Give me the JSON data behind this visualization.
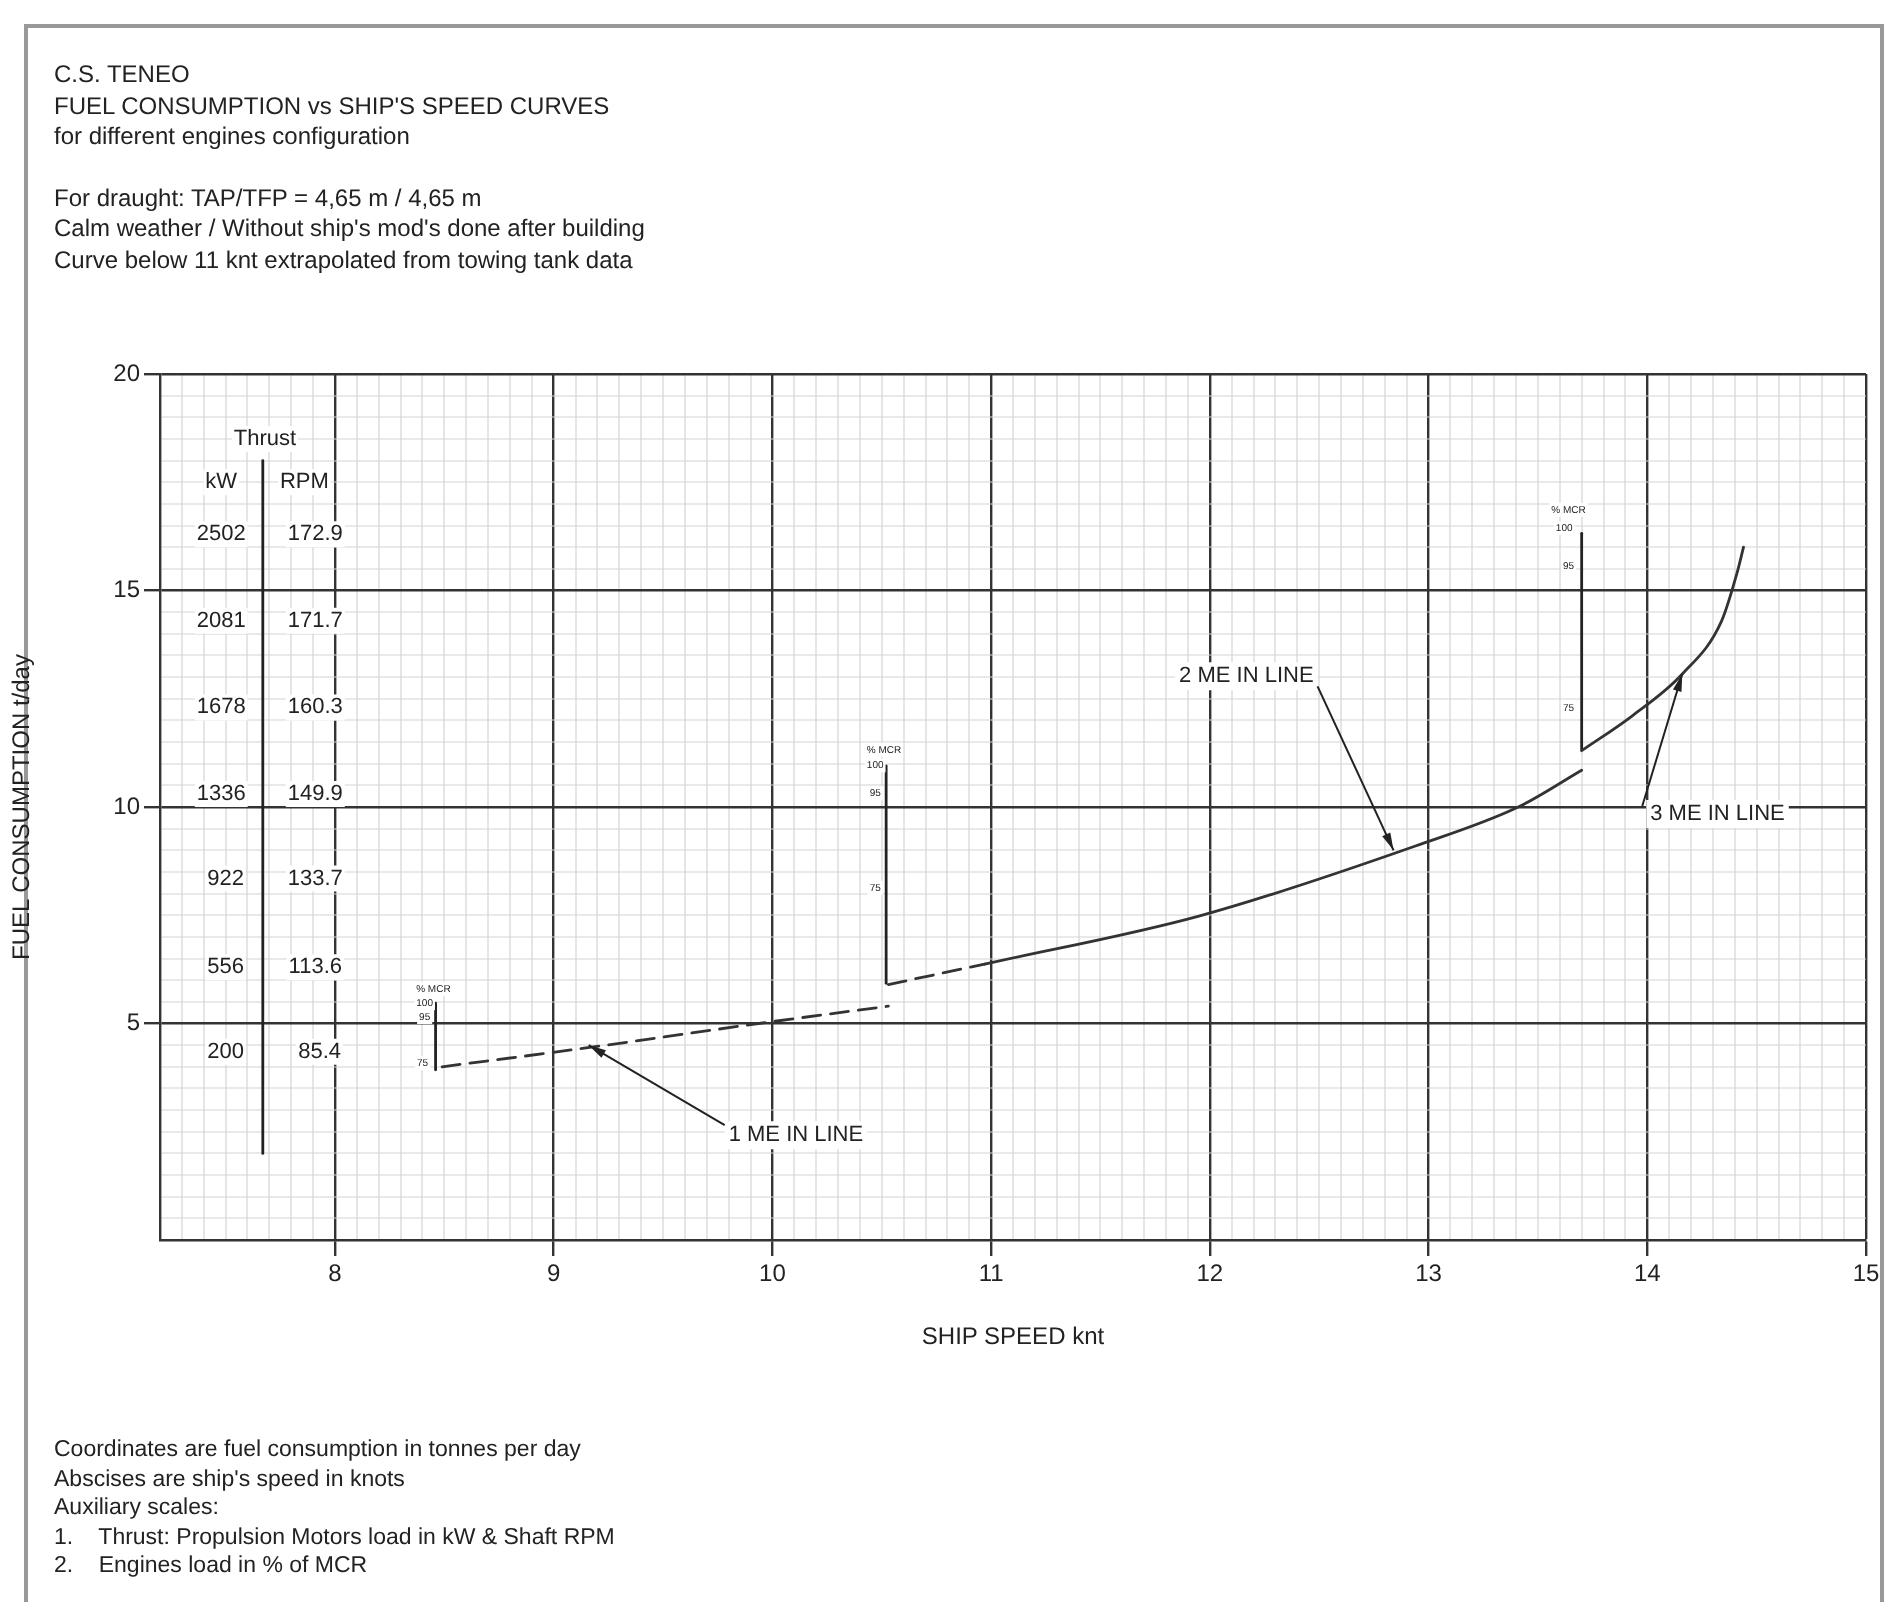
{
  "chart_data": {
    "type": "line",
    "title": "C.S. TENEO",
    "subtitle": "FUEL CONSUMPTION vs SHIP'S SPEED CURVES\nfor different engines configuration",
    "xlabel": "SHIP SPEED knt",
    "ylabel": "FUEL CONSUMPTION t/day",
    "xlim": [
      7.2,
      15
    ],
    "ylim": [
      0,
      20
    ],
    "xticks": [
      {
        "value": 7.3,
        "label": null
      },
      {
        "value": 7.4,
        "label": null
      },
      {
        "value": 7.5,
        "label": null
      },
      {
        "value": 7.6,
        "label": null
      },
      {
        "value": 7.7,
        "label": null
      },
      {
        "value": 7.8,
        "label": null
      },
      {
        "value": 7.9,
        "label": null
      },
      8,
      {
        "value": 8.1,
        "label": null
      },
      {
        "value": 8.2,
        "label": null
      },
      {
        "value": 8.3,
        "label": null
      },
      {
        "value": 8.4,
        "label": null
      },
      {
        "value": 8.5,
        "label": null
      },
      {
        "value": 8.6,
        "label": null
      },
      {
        "value": 8.7,
        "label": null
      },
      {
        "value": 8.8,
        "label": null
      },
      {
        "value": 8.9,
        "label": null
      },
      9,
      {
        "value": 9.1,
        "label": null
      },
      {
        "value": 9.2,
        "label": null
      },
      {
        "value": 9.3,
        "label": null
      },
      {
        "value": 9.4,
        "label": null
      },
      {
        "value": 9.5,
        "label": null
      },
      {
        "value": 9.6,
        "label": null
      },
      {
        "value": 9.7,
        "label": null
      },
      {
        "value": 9.8,
        "label": null
      },
      {
        "value": 9.9,
        "label": null
      },
      10,
      {
        "value": 10.1,
        "label": null
      },
      {
        "value": 10.2,
        "label": null
      },
      {
        "value": 10.3,
        "label": null
      },
      {
        "value": 10.4,
        "label": null
      },
      {
        "value": 10.5,
        "label": null
      },
      {
        "value": 10.6,
        "label": null
      },
      {
        "value": 10.7,
        "label": null
      },
      {
        "value": 10.8,
        "label": null
      },
      {
        "value": 10.9,
        "label": null
      },
      11,
      {
        "value": 11.1,
        "label": null
      },
      {
        "value": 11.2,
        "label": null
      },
      {
        "value": 11.3,
        "label": null
      },
      {
        "value": 11.4,
        "label": null
      },
      {
        "value": 11.5,
        "label": null
      },
      {
        "value": 11.6,
        "label": null
      },
      {
        "value": 11.7,
        "label": null
      },
      {
        "value": 11.8,
        "label": null
      },
      {
        "value": 11.9,
        "label": null
      },
      12,
      {
        "value": 12.1,
        "label": null
      },
      {
        "value": 12.2,
        "label": null
      },
      {
        "value": 12.3,
        "label": null
      },
      {
        "value": 12.4,
        "label": null
      },
      {
        "value": 12.5,
        "label": null
      },
      {
        "value": 12.6,
        "label": null
      },
      {
        "value": 12.7,
        "label": null
      },
      {
        "value": 12.8,
        "label": null
      },
      {
        "value": 12.9,
        "label": null
      },
      13,
      {
        "value": 13.1,
        "label": null
      },
      {
        "value": 13.2,
        "label": null
      },
      {
        "value": 13.3,
        "label": null
      },
      {
        "value": 13.4,
        "label": null
      },
      {
        "value": 13.5,
        "label": null
      },
      {
        "value": 13.6,
        "label": null
      },
      {
        "value": 13.7,
        "label": null
      },
      {
        "value": 13.8,
        "label": null
      },
      {
        "value": 13.9,
        "label": null
      },
      14,
      {
        "value": 14.1,
        "label": null
      },
      {
        "value": 14.2,
        "label": null
      },
      {
        "value": 14.3,
        "label": null
      },
      {
        "value": 14.4,
        "label": null
      },
      {
        "value": 14.5,
        "label": null
      },
      {
        "value": 14.6,
        "label": null
      },
      {
        "value": 14.7,
        "label": null
      },
      {
        "value": 14.8,
        "label": null
      },
      {
        "value": 14.9,
        "label": null
      },
      15
    ],
    "yticks": [
      {
        "value": 0,
        "label": null
      },
      {
        "value": 0.5,
        "label": null
      },
      {
        "value": 1,
        "label": null
      },
      {
        "value": 1.5,
        "label": null
      },
      {
        "value": 2,
        "label": null
      },
      {
        "value": 2.5,
        "label": null
      },
      {
        "value": 3,
        "label": null
      },
      {
        "value": 3.5,
        "label": null
      },
      {
        "value": 4,
        "label": null
      },
      {
        "value": 4.5,
        "label": null
      },
      5,
      {
        "value": 5.5,
        "label": null
      },
      {
        "value": 6,
        "label": null
      },
      {
        "value": 6.5,
        "label": null
      },
      {
        "value": 7,
        "label": null
      },
      {
        "value": 7.5,
        "label": null
      },
      {
        "value": 8,
        "label": null
      },
      {
        "value": 8.5,
        "label": null
      },
      {
        "value": 9,
        "label": null
      },
      {
        "value": 9.5,
        "label": null
      },
      10,
      {
        "value": 10.5,
        "label": null
      },
      {
        "value": 11,
        "label": null
      },
      {
        "value": 11.5,
        "label": null
      },
      {
        "value": 12,
        "label": null
      },
      {
        "value": 12.5,
        "label": null
      },
      {
        "value": 13,
        "label": null
      },
      {
        "value": 13.5,
        "label": null
      },
      {
        "value": 14,
        "label": null
      },
      {
        "value": 14.5,
        "label": null
      },
      15,
      {
        "value": 15.5,
        "label": null
      },
      {
        "value": 16,
        "label": null
      },
      {
        "value": 16.5,
        "label": null
      },
      {
        "value": 17,
        "label": null
      },
      {
        "value": 17.5,
        "label": null
      },
      {
        "value": 18,
        "label": null
      },
      {
        "value": 18.5,
        "label": null
      },
      {
        "value": 19,
        "label": null
      },
      {
        "value": 19.5,
        "label": null
      },
      20
    ],
    "grid": true,
    "series": [
      {
        "color": "#333333",
        "line_style": "dashed",
        "x": [
          8.49,
          9.14,
          9.98,
          10.53
        ],
        "values": [
          4.0,
          4.43,
          5.03,
          5.4
        ]
      },
      {
        "color": "#333333",
        "line_style": "dashed",
        "x": [
          10.53,
          10.97
        ],
        "values": [
          5.9,
          6.37
        ]
      },
      {
        "color": "#333333",
        "line_style": "solid",
        "x": [
          10.97,
          11.95,
          12.94,
          13.41,
          13.7
        ],
        "values": [
          6.37,
          7.48,
          9.1,
          10.0,
          10.85
        ]
      },
      {
        "color": "#333333",
        "line_style": "solid",
        "x": [
          13.7,
          13.93,
          14.16,
          14.34,
          14.41,
          14.44
        ],
        "values": [
          11.3,
          12.1,
          13.07,
          14.3,
          15.4,
          16.0
        ]
      },
      {
        "color": "#222222",
        "line_style": "solid",
        "x": [
          7.67,
          7.67
        ],
        "values": [
          18,
          2
        ]
      },
      {
        "color": "#222222",
        "line_style": "solid",
        "x": [
          8.46,
          8.46
        ],
        "values": [
          5.47,
          3.93
        ]
      },
      {
        "color": "#222222",
        "line_style": "solid",
        "x": [
          10.52,
          10.52
        ],
        "values": [
          10.95,
          5.93
        ]
      },
      {
        "color": "#222222",
        "line_style": "solid",
        "x": [
          13.7,
          13.7
        ],
        "values": [
          16.32,
          11.32
        ]
      }
    ],
    "annotations": [
      "For draught: TAP/TFP = 4,65 m / 4,65 m",
      "Calm weather / Without ship's mod's done after building",
      "Curve below 11 knt extrapolated from towing tank data",
      {
        "text": "1 ME IN LINE",
        "x": 9.16,
        "y": 4.5
      },
      {
        "text": "2 ME IN LINE",
        "x": 12.84,
        "y": 9.0
      },
      {
        "text": "3 ME IN LINE",
        "x": 14.16,
        "y": 13.07
      },
      "Thrust",
      "kW",
      "RPM",
      "2502",
      "172.9",
      "2081",
      "171.7",
      "1678",
      "160.3",
      "1336",
      "149.9",
      "922",
      "133.7",
      "556",
      "113.6",
      "200",
      "85.4",
      "% MCR",
      "100",
      "95",
      "75",
      "% MCR",
      "100",
      "95",
      "75",
      "% MCR",
      "100",
      "95",
      "75",
      "Coordinates are fuel consumption in tonnes per day",
      "Abscises are ship's speed in knots",
      "Auxiliary scales:",
      "1.    Thrust: Propulsion Motors load in kW & Shaft RPM",
      "2.    Engines load in % of MCR"
    ]
  }
}
